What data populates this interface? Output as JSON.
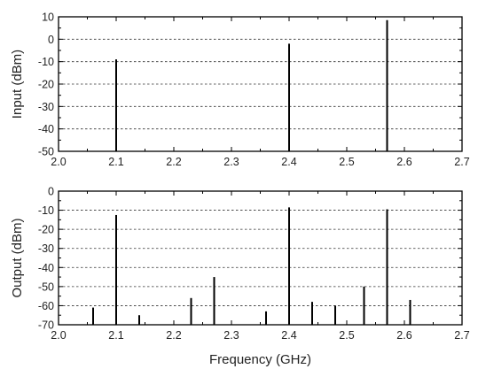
{
  "chart_data": [
    {
      "type": "bar",
      "subtype": "spectrum-lines",
      "ylabel": "Input (dBm)",
      "xlabel": "",
      "xlim": [
        2.0,
        2.7
      ],
      "ylim": [
        -50,
        10
      ],
      "xticks": [
        "2.0",
        "2.1",
        "2.2",
        "2.3",
        "2.4",
        "2.5",
        "2.6",
        "2.7"
      ],
      "yticks": [
        "10",
        "0",
        "-10",
        "-20",
        "-30",
        "-40",
        "-50"
      ],
      "grid": "horizontal-dashed",
      "x": [
        2.1,
        2.4,
        2.57
      ],
      "values": [
        -9,
        -2,
        8.5
      ]
    },
    {
      "type": "bar",
      "subtype": "spectrum-lines",
      "ylabel": "Output (dBm)",
      "xlabel": "Frequency (GHz)",
      "xlim": [
        2.0,
        2.7
      ],
      "ylim": [
        -70,
        0
      ],
      "xticks": [
        "2.0",
        "2.1",
        "2.2",
        "2.3",
        "2.4",
        "2.5",
        "2.6",
        "2.7"
      ],
      "yticks": [
        "0",
        "-10",
        "-20",
        "-30",
        "-40",
        "-50",
        "-60",
        "-70"
      ],
      "grid": "horizontal-dashed",
      "x": [
        2.06,
        2.1,
        2.14,
        2.23,
        2.27,
        2.36,
        2.4,
        2.44,
        2.48,
        2.53,
        2.57,
        2.61
      ],
      "values": [
        -61,
        -12.5,
        -65,
        -56,
        -45,
        -63,
        -8.5,
        -58,
        -60,
        -50,
        -9.5,
        -57
      ]
    }
  ]
}
